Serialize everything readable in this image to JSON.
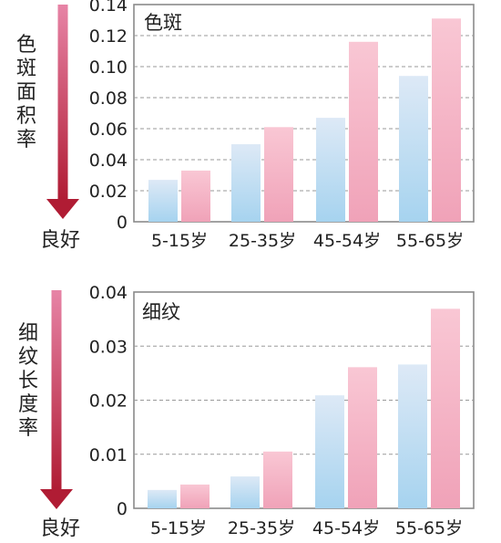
{
  "chart_data": [
    {
      "type": "bar",
      "title": "色斑",
      "ylabel": "色斑面积率",
      "arrow_label": "良好",
      "categories": [
        "5-15岁",
        "25-35岁",
        "45-54岁",
        "55-65岁"
      ],
      "series": [
        {
          "values": [
            0.027,
            0.05,
            0.067,
            0.094
          ]
        },
        {
          "values": [
            0.033,
            0.061,
            0.116,
            0.131
          ]
        }
      ],
      "yticks": [
        "0.14",
        "0.12",
        "0.10",
        "0.08",
        "0.06",
        "0.04",
        "0.02",
        "0"
      ],
      "ylim": [
        0,
        0.14
      ],
      "grid": "dashed horizontal"
    },
    {
      "type": "bar",
      "title": "细纹",
      "ylabel": "细纹长度率",
      "arrow_label": "良好",
      "categories": [
        "5-15岁",
        "25-35岁",
        "45-54岁",
        "55-65岁"
      ],
      "series": [
        {
          "values": [
            0.0034,
            0.0059,
            0.0209,
            0.0266
          ]
        },
        {
          "values": [
            0.0044,
            0.0105,
            0.0261,
            0.0369
          ]
        }
      ],
      "yticks": [
        "0.04",
        "0.03",
        "0.02",
        "0.01",
        "0"
      ],
      "ylim": [
        0,
        0.04
      ],
      "grid": "dashed horizontal"
    }
  ],
  "colors": {
    "series_blue_top": "#dde9f6",
    "series_blue_bottom": "#a6d3ef",
    "series_pink_top": "#f9c7d4",
    "series_pink_bottom": "#f0a2b8",
    "arrow_top": "#e784a6",
    "arrow_bottom": "#b01c34",
    "grid": "#9a9a9a",
    "frame": "#8a8a8a"
  }
}
